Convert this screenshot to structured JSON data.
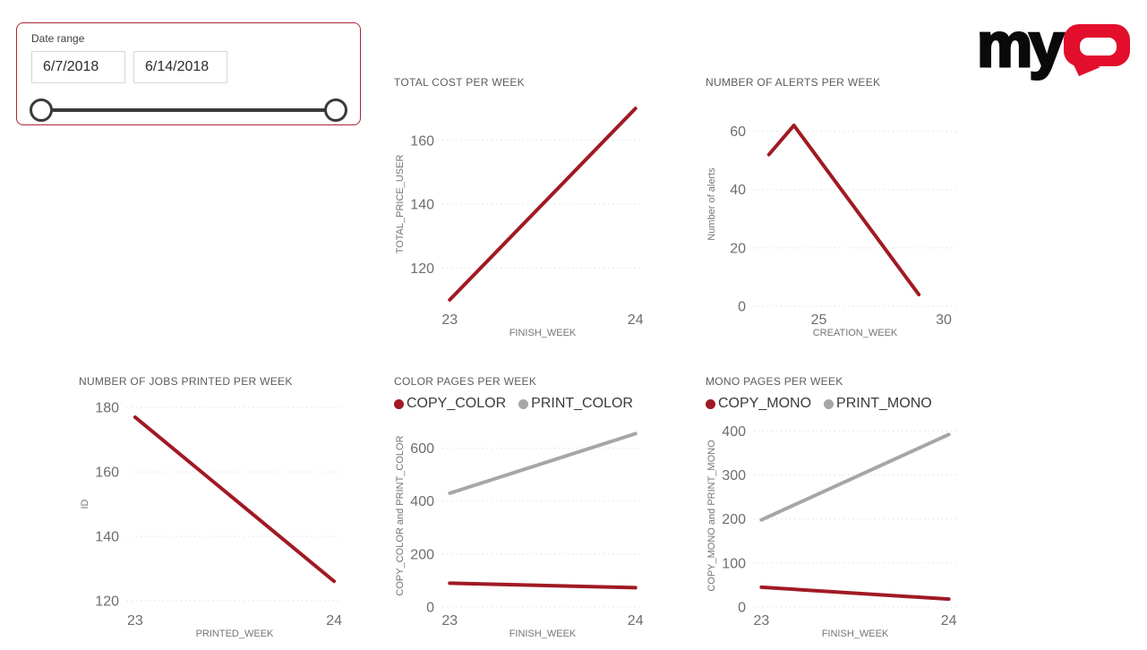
{
  "slicer": {
    "label": "Date range",
    "start_date": "6/7/2018",
    "end_date": "6/14/2018",
    "border_color": "#a82734"
  },
  "logo": {
    "my": "my",
    "q_color": "#e20e2c",
    "my_color": "#0a0a0a"
  },
  "colors": {
    "line_red": "#a01a23",
    "line_gray": "#a6a6a6",
    "grid": "#d8d8d8",
    "tick_text": "#6e6e6e",
    "axis_title_text": "#757575",
    "chart_title_text": "#5c5c5c"
  },
  "chart_data": [
    {
      "type": "line",
      "title": "TOTAL COST PER WEEK",
      "xlabel": "FINISH_WEEK",
      "ylabel": "TOTAL_PRICE_USER",
      "x_ticks": [
        23,
        24
      ],
      "y_ticks": [
        120,
        140,
        160
      ],
      "x_range": [
        22.96,
        24.04
      ],
      "y_range": [
        108,
        172
      ],
      "grid": "dotted-horizontal",
      "legend": null,
      "series": [
        {
          "name": "TOTAL_PRICE_USER",
          "color": "#a01a23",
          "x": [
            23,
            24
          ],
          "y": [
            110,
            170
          ]
        }
      ]
    },
    {
      "type": "line",
      "title": "NUMBER OF ALERTS PER WEEK",
      "xlabel": "CREATION_WEEK",
      "ylabel": "Number of alerts",
      "x_ticks": [
        25,
        30
      ],
      "y_ticks": [
        0,
        20,
        40,
        60
      ],
      "x_range": [
        22.4,
        30.5
      ],
      "y_range": [
        0,
        70
      ],
      "grid": "dotted-horizontal",
      "legend": null,
      "series": [
        {
          "name": "Number of alerts",
          "color": "#a01a23",
          "x": [
            23,
            24,
            29
          ],
          "y": [
            52,
            62,
            4
          ]
        }
      ]
    },
    {
      "type": "line",
      "title": "NUMBER OF JOBS PRINTED PER WEEK",
      "xlabel": "PRINTED_WEEK",
      "ylabel": "ID",
      "x_ticks": [
        23,
        24
      ],
      "y_ticks": [
        120,
        140,
        160,
        180
      ],
      "x_range": [
        22.96,
        24.04
      ],
      "y_range": [
        118,
        182
      ],
      "grid": "dotted-horizontal",
      "legend": null,
      "series": [
        {
          "name": "ID",
          "color": "#a01a23",
          "x": [
            23,
            24
          ],
          "y": [
            177,
            126
          ]
        }
      ]
    },
    {
      "type": "line",
      "title": "COLOR PAGES PER WEEK",
      "xlabel": "FINISH_WEEK",
      "ylabel": "COPY_COLOR and PRINT_COLOR",
      "x_ticks": [
        23,
        24
      ],
      "y_ticks": [
        0,
        200,
        400,
        600
      ],
      "x_range": [
        22.96,
        24.04
      ],
      "y_range": [
        0,
        690
      ],
      "grid": "dotted-horizontal",
      "legend": [
        {
          "label": "COPY_COLOR",
          "color": "#a01a23"
        },
        {
          "label": "PRINT_COLOR",
          "color": "#a6a6a6"
        }
      ],
      "series": [
        {
          "name": "COPY_COLOR",
          "color": "#a01a23",
          "x": [
            23,
            24
          ],
          "y": [
            90,
            73
          ]
        },
        {
          "name": "PRINT_COLOR",
          "color": "#a6a6a6",
          "x": [
            23,
            24
          ],
          "y": [
            430,
            655
          ]
        }
      ]
    },
    {
      "type": "line",
      "title": "MONO PAGES PER WEEK",
      "xlabel": "FINISH_WEEK",
      "ylabel": "COPY_MONO and PRINT_MONO",
      "x_ticks": [
        23,
        24
      ],
      "y_ticks": [
        0,
        100,
        200,
        300,
        400
      ],
      "x_range": [
        22.96,
        24.04
      ],
      "y_range": [
        0,
        415
      ],
      "grid": "dotted-horizontal",
      "legend": [
        {
          "label": "COPY_MONO",
          "color": "#a01a23"
        },
        {
          "label": "PRINT_MONO",
          "color": "#a6a6a6"
        }
      ],
      "series": [
        {
          "name": "COPY_MONO",
          "color": "#a01a23",
          "x": [
            23,
            24
          ],
          "y": [
            45,
            18
          ]
        },
        {
          "name": "PRINT_MONO",
          "color": "#a6a6a6",
          "x": [
            23,
            24
          ],
          "y": [
            198,
            392
          ]
        }
      ]
    }
  ]
}
